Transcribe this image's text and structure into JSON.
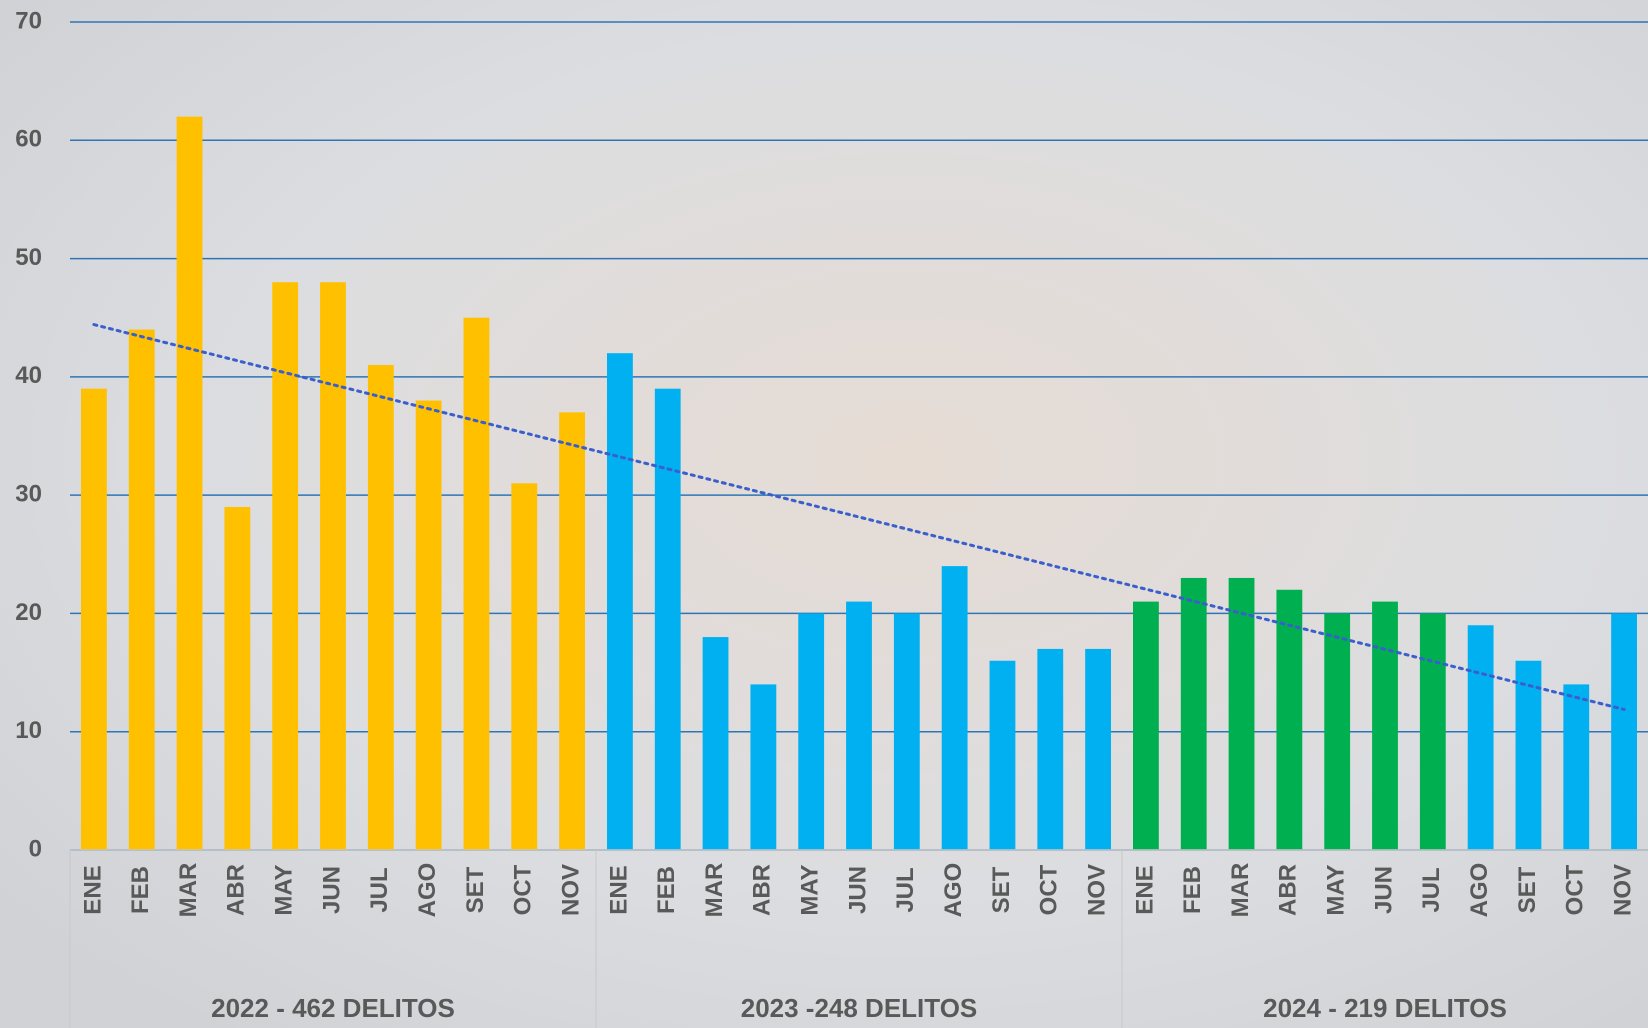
{
  "chart_data": {
    "type": "bar",
    "ylim": [
      0,
      70
    ],
    "yticks": [
      0,
      10,
      20,
      30,
      40,
      50,
      60,
      70
    ],
    "grid": true,
    "grid_color": "#2e75b6",
    "trendline": {
      "kind": "linear",
      "color": "#3a5fcd"
    },
    "groups": [
      {
        "name": "2022 - 462 DELITOS",
        "categories": [
          "ENE",
          "FEB",
          "MAR",
          "ABR",
          "MAY",
          "JUN",
          "JUL",
          "AGO",
          "SET",
          "OCT",
          "NOV"
        ],
        "values": [
          39,
          44,
          62,
          29,
          48,
          48,
          41,
          38,
          45,
          31,
          37
        ],
        "colors": [
          "#ffc000",
          "#ffc000",
          "#ffc000",
          "#ffc000",
          "#ffc000",
          "#ffc000",
          "#ffc000",
          "#ffc000",
          "#ffc000",
          "#ffc000",
          "#ffc000"
        ]
      },
      {
        "name": "2023 -248 DELITOS",
        "categories": [
          "ENE",
          "FEB",
          "MAR",
          "ABR",
          "MAY",
          "JUN",
          "JUL",
          "AGO",
          "SET",
          "OCT",
          "NOV"
        ],
        "values": [
          42,
          39,
          18,
          14,
          20,
          21,
          20,
          24,
          16,
          17,
          17
        ],
        "colors": [
          "#00b0f0",
          "#00b0f0",
          "#00b0f0",
          "#00b0f0",
          "#00b0f0",
          "#00b0f0",
          "#00b0f0",
          "#00b0f0",
          "#00b0f0",
          "#00b0f0",
          "#00b0f0"
        ]
      },
      {
        "name": "2024 - 219 DELITOS",
        "categories": [
          "ENE",
          "FEB",
          "MAR",
          "ABR",
          "MAY",
          "JUN",
          "JUL",
          "AGO",
          "SET",
          "OCT",
          "NOV"
        ],
        "values": [
          21,
          23,
          23,
          22,
          20,
          21,
          20,
          19,
          16,
          14,
          20
        ],
        "colors": [
          "#00b050",
          "#00b050",
          "#00b050",
          "#00b050",
          "#00b050",
          "#00b050",
          "#00b050",
          "#00b0f0",
          "#00b0f0",
          "#00b0f0",
          "#00b0f0"
        ]
      }
    ]
  }
}
